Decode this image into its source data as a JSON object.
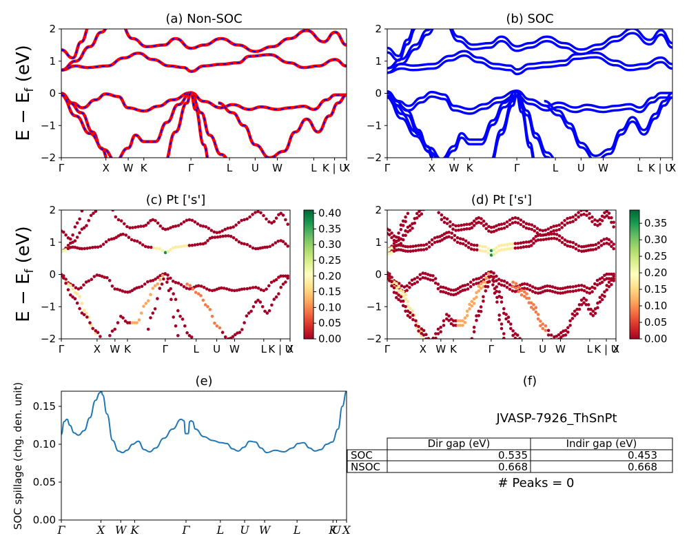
{
  "figure": {
    "ylabel_band": "E − E_f (eV)",
    "kpath_labels": [
      "Γ",
      "X",
      "W",
      "K",
      "Γ",
      "L",
      "U",
      "W",
      "L",
      "K | U",
      "X"
    ],
    "kpath_labels_e": [
      "Γ",
      "X",
      "W",
      "K",
      "Γ",
      "L",
      "U",
      "W",
      "L",
      "K",
      "U",
      "X"
    ],
    "yticks": [
      "2",
      "1",
      "0",
      "−1",
      "−2"
    ]
  },
  "chart_data": [
    {
      "panel": "a",
      "type": "line",
      "title": "(a) Non-SOC",
      "ylabel": "E − E_f (eV)",
      "ylim": [
        -2,
        2
      ],
      "series": [
        {
          "color": "#ff0000",
          "dashed_overlay_color": "#0000ff",
          "bands": [
            [
              0.75,
              0.95,
              1.25,
              1.7,
              2.0
            ],
            [
              1.3,
              1.55,
              1.9,
              2.0
            ],
            [
              0.7,
              0.75,
              0.85,
              1.05,
              1.2,
              0.95,
              0.75,
              0.72,
              0.85,
              0.9,
              0.85
            ],
            [
              -0.1,
              -0.45,
              -0.15,
              0.0,
              -0.2,
              -0.5,
              -0.3,
              0.0,
              -0.35,
              -0.45,
              -0.6,
              -0.45,
              -0.4,
              -0.35,
              -0.05,
              -0.45,
              -0.2,
              0.0
            ],
            [
              -0.05,
              -0.6,
              -1.2,
              -1.7,
              -2.0
            ],
            [
              -0.05,
              -0.7,
              -1.4,
              -1.1,
              -1.5,
              -1.1,
              -0.3,
              0.0,
              -0.6,
              -1.5,
              -2.0,
              -1.3,
              -0.9,
              -0.3,
              -0.1
            ]
          ]
        }
      ]
    },
    {
      "panel": "b",
      "type": "line",
      "title": "(b) SOC",
      "ylim": [
        -2,
        2
      ],
      "series": [
        {
          "color": "#0000ff"
        }
      ]
    },
    {
      "panel": "c",
      "type": "scatter",
      "title": "(c)  Pt ['s']",
      "ylabel": "E − E_f (eV)",
      "ylim": [
        -2,
        2
      ],
      "colorbar": {
        "ticks": [
          "0.00",
          "0.05",
          "0.10",
          "0.15",
          "0.20",
          "0.25",
          "0.30",
          "0.35",
          "0.40"
        ],
        "range": [
          0,
          0.41
        ],
        "colormap": "RdYlGn"
      }
    },
    {
      "panel": "d",
      "type": "scatter",
      "title": "(d) Pt ['s']",
      "ylim": [
        -2,
        2
      ],
      "colorbar": {
        "ticks": [
          "0.00",
          "0.05",
          "0.10",
          "0.15",
          "0.20",
          "0.25",
          "0.30",
          "0.35"
        ],
        "range": [
          0,
          0.39
        ],
        "colormap": "RdYlGn"
      }
    },
    {
      "panel": "e",
      "type": "line",
      "title": "(e)",
      "ylabel": "SOC spillage (chg. den. unit)",
      "ylim": [
        0,
        0.17
      ],
      "yticks": [
        "0.00",
        "0.05",
        "0.10",
        "0.15"
      ],
      "x_positions": [
        0,
        0.1388,
        0.2084,
        0.2571,
        0.4372,
        0.5576,
        0.6426,
        0.7127,
        0.8264,
        0.9524,
        0.9647,
        1.0
      ],
      "series": [
        {
          "color": "#1f77b4",
          "x": [
            0,
            0.01,
            0.02,
            0.03,
            0.045,
            0.06,
            0.08,
            0.1,
            0.12,
            0.135,
            0.14,
            0.145,
            0.16,
            0.18,
            0.2,
            0.215,
            0.23,
            0.25,
            0.27,
            0.29,
            0.31,
            0.33,
            0.36,
            0.39,
            0.42,
            0.43,
            0.435,
            0.445,
            0.45,
            0.455,
            0.46,
            0.47,
            0.5,
            0.53,
            0.56,
            0.58,
            0.6,
            0.62,
            0.64,
            0.66,
            0.68,
            0.7,
            0.72,
            0.75,
            0.78,
            0.81,
            0.83,
            0.85,
            0.87,
            0.89,
            0.91,
            0.93,
            0.95,
            0.97,
            0.985,
            1.0
          ],
          "y": [
            0.113,
            0.13,
            0.133,
            0.125,
            0.115,
            0.112,
            0.118,
            0.135,
            0.158,
            0.168,
            0.17,
            0.165,
            0.14,
            0.105,
            0.091,
            0.089,
            0.092,
            0.1,
            0.104,
            0.093,
            0.09,
            0.095,
            0.108,
            0.12,
            0.133,
            0.131,
            0.114,
            0.114,
            0.13,
            0.131,
            0.13,
            0.12,
            0.11,
            0.105,
            0.102,
            0.101,
            0.094,
            0.091,
            0.096,
            0.104,
            0.103,
            0.095,
            0.089,
            0.092,
            0.09,
            0.095,
            0.101,
            0.102,
            0.095,
            0.091,
            0.093,
            0.1,
            0.103,
            0.12,
            0.15,
            0.17
          ]
        }
      ]
    }
  ],
  "panel_f": {
    "title": "(f)",
    "material": "JVASP-7926_ThSnPt",
    "table": {
      "headers": [
        "Dir gap (eV)",
        "Indir gap (eV)"
      ],
      "rows": [
        {
          "label": "SOC",
          "dir": "0.535",
          "indir": "0.453"
        },
        {
          "label": "NSOC",
          "dir": "0.668",
          "indir": "0.668"
        }
      ]
    },
    "peaks_text": "# Peaks = 0"
  }
}
